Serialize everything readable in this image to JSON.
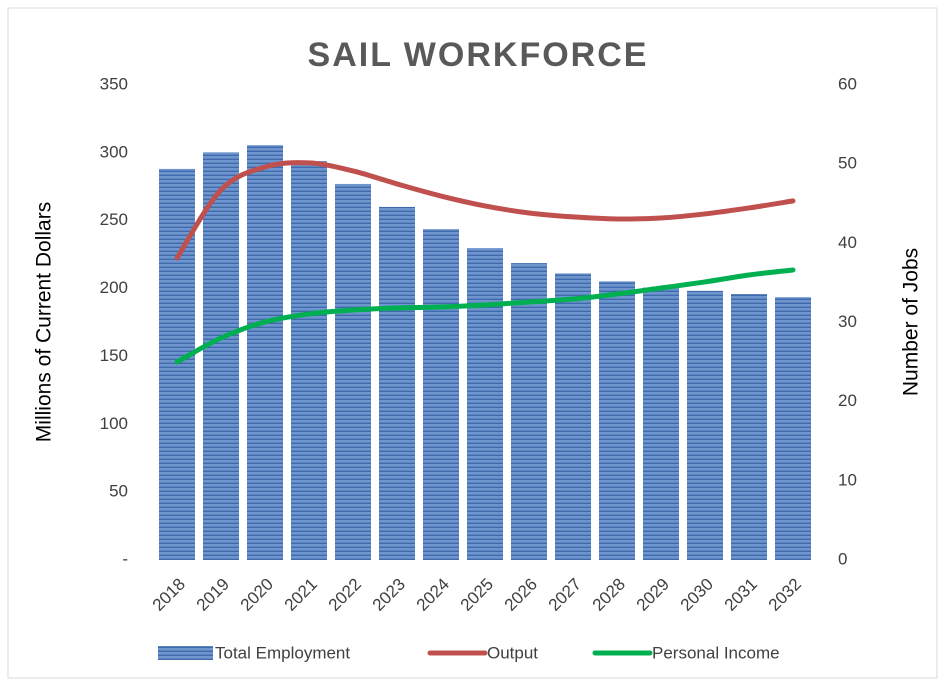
{
  "chart_data": {
    "type": "bar-line",
    "title": "SAIL WORKFORCE",
    "y_label": "Millions of Current Dollars",
    "y2_label": "Number of Jobs",
    "categories": [
      "2018",
      "2019",
      "2020",
      "2021",
      "2022",
      "2023",
      "2024",
      "2025",
      "2026",
      "2027",
      "2028",
      "2029",
      "2030",
      "2031",
      "2032"
    ],
    "series": [
      {
        "name": "Total Employment",
        "type": "bar",
        "axis": "y2",
        "color": "#5b86c5",
        "values": [
          49.4,
          51.5,
          52.4,
          50.4,
          47.5,
          44.6,
          41.8,
          39.4,
          37.5,
          36.2,
          35.2,
          34.4,
          34.0,
          33.6,
          33.2
        ]
      },
      {
        "name": "Output",
        "type": "line",
        "color": "#c0504d",
        "values": [
          222.5,
          272.7,
          289.6,
          292.6,
          286.7,
          277.1,
          268.2,
          260.9,
          255.7,
          252.8,
          251.3,
          252.0,
          255.0,
          259.4,
          264.6
        ]
      },
      {
        "name": "Personal Income",
        "type": "line",
        "color": "#00b050",
        "values": [
          145.9,
          163.6,
          175.4,
          181.3,
          184.2,
          185.7,
          186.4,
          187.9,
          190.1,
          192.3,
          196.0,
          200.4,
          204.9,
          210.0,
          213.7
        ]
      }
    ],
    "ylim": [
      0,
      350
    ],
    "yticks": [
      {
        "value": 0,
        "label": "-"
      },
      50,
      100,
      150,
      200,
      250,
      300,
      350
    ],
    "y2lim": [
      0,
      60
    ],
    "y2ticks": [
      0,
      10,
      20,
      30,
      40,
      50,
      60
    ],
    "grid": false
  }
}
